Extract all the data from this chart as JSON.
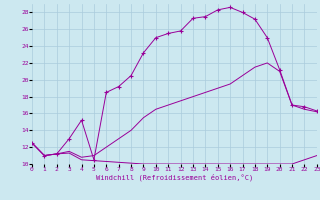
{
  "background_color": "#cce8f0",
  "grid_color": "#aaccdd",
  "line_color": "#990099",
  "xlim": [
    0,
    23
  ],
  "ylim": [
    10,
    29
  ],
  "xticks": [
    0,
    1,
    2,
    3,
    4,
    5,
    6,
    7,
    8,
    9,
    10,
    11,
    12,
    13,
    14,
    15,
    16,
    17,
    18,
    19,
    20,
    21,
    22,
    23
  ],
  "yticks": [
    10,
    12,
    14,
    16,
    18,
    20,
    22,
    24,
    26,
    28
  ],
  "xlabel": "Windchill (Refroidissement éolien,°C)",
  "s1_x": [
    0,
    1,
    2,
    3,
    4,
    5,
    6,
    7,
    8,
    9,
    10,
    11,
    12,
    13,
    14,
    15,
    16,
    17,
    18,
    19,
    20,
    21,
    22,
    23
  ],
  "s1_y": [
    12.5,
    11.0,
    11.2,
    11.3,
    10.5,
    10.4,
    10.3,
    10.2,
    10.1,
    10.0,
    10.0,
    10.0,
    10.0,
    10.0,
    10.0,
    10.0,
    10.0,
    10.0,
    10.0,
    10.0,
    10.0,
    10.0,
    10.5,
    11.0
  ],
  "s2_x": [
    0,
    1,
    2,
    3,
    4,
    5,
    6,
    7,
    8,
    9,
    10,
    11,
    12,
    13,
    14,
    15,
    16,
    17,
    18,
    19,
    20,
    21,
    22,
    23
  ],
  "s2_y": [
    12.5,
    11.0,
    11.2,
    11.5,
    10.8,
    11.0,
    12.0,
    13.0,
    14.0,
    15.5,
    16.5,
    17.0,
    17.5,
    18.0,
    18.5,
    19.0,
    19.5,
    20.5,
    21.5,
    22.0,
    21.0,
    17.0,
    16.5,
    16.2
  ],
  "s3_x": [
    0,
    1,
    2,
    3,
    4,
    5,
    6,
    7,
    8,
    9,
    10,
    11,
    12,
    13,
    14,
    15,
    16,
    17,
    18,
    19,
    20,
    21,
    22,
    23
  ],
  "s3_y": [
    12.5,
    11.0,
    11.2,
    13.0,
    15.2,
    10.5,
    18.5,
    19.2,
    20.5,
    23.2,
    25.0,
    25.5,
    25.8,
    27.3,
    27.5,
    28.3,
    28.6,
    28.0,
    27.2,
    25.0,
    21.2,
    17.0,
    16.8,
    16.3
  ]
}
